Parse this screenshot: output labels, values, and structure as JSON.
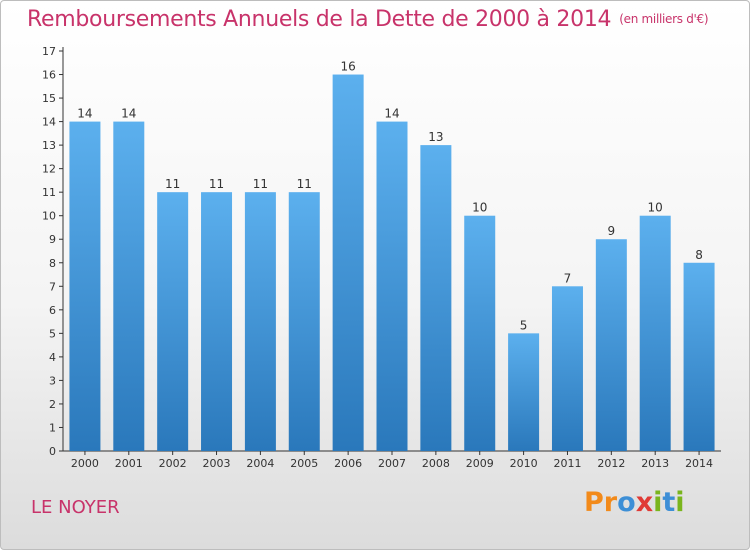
{
  "header": {
    "title": "Remboursements Annuels de la Dette de 2000 à 2014",
    "unit": "(en milliers d'€)"
  },
  "footer": {
    "place": "LE NOYER",
    "brand": "Proxiti"
  },
  "colors": {
    "title": "#c8336a",
    "bar_top": "#5cb0ee",
    "bar_bottom": "#2a78bb",
    "axis": "#333333"
  },
  "chart_data": {
    "type": "bar",
    "categories": [
      "2000",
      "2001",
      "2002",
      "2003",
      "2004",
      "2005",
      "2006",
      "2007",
      "2008",
      "2009",
      "2010",
      "2011",
      "2012",
      "2013",
      "2014"
    ],
    "values": [
      14,
      14,
      11,
      11,
      11,
      11,
      16,
      14,
      13,
      10,
      5,
      7,
      9,
      10,
      8
    ],
    "ylim": [
      0,
      17
    ],
    "yticks": [
      0,
      1,
      2,
      3,
      4,
      5,
      6,
      7,
      8,
      9,
      10,
      11,
      12,
      13,
      14,
      15,
      16,
      17
    ],
    "grid": false,
    "data_labels": true
  }
}
